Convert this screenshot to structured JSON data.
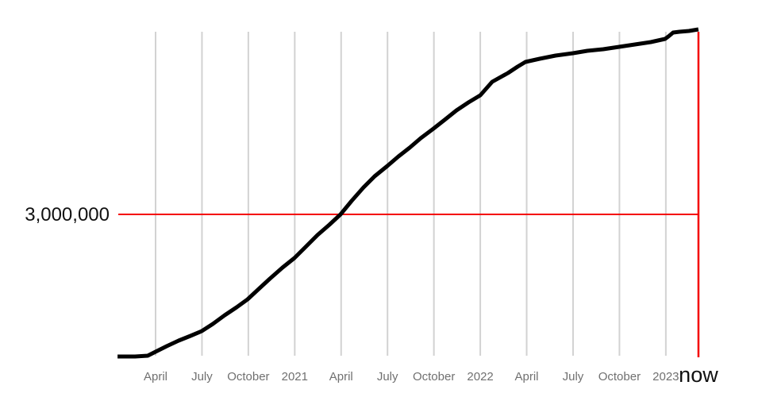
{
  "page": {
    "background": "#ffffff"
  },
  "chart_data": {
    "type": "line",
    "title": "",
    "x_unit": "months since January 2020",
    "x_range": [
      0.54,
      38.11
    ],
    "y_range": [
      0,
      6833000
    ],
    "grid": {
      "show": true,
      "color": "#d2d2d2"
    },
    "x_ticks": [
      {
        "label": "April",
        "month": 3
      },
      {
        "label": "July",
        "month": 6
      },
      {
        "label": "October",
        "month": 9
      },
      {
        "label": "2021",
        "month": 12
      },
      {
        "label": "April",
        "month": 15
      },
      {
        "label": "July",
        "month": 18
      },
      {
        "label": "October",
        "month": 21
      },
      {
        "label": "2022",
        "month": 24
      },
      {
        "label": "April",
        "month": 27
      },
      {
        "label": "July",
        "month": 30
      },
      {
        "label": "October",
        "month": 33
      },
      {
        "label": "2023",
        "month": 36
      }
    ],
    "x_tick_color": "#707070",
    "reference_line": {
      "label": "3,000,000",
      "value": 3000000,
      "color": "#f40000"
    },
    "now_marker": {
      "label": "now",
      "month": 38.11,
      "color": "#f40000",
      "label_color": "#111111"
    },
    "series": [
      {
        "name": "cumulative-count",
        "color": "#000000",
        "stroke_width": 5,
        "points": [
          [
            0.54,
            17000
          ],
          [
            1.67,
            17000
          ],
          [
            2.49,
            33000
          ],
          [
            3.0,
            117000
          ],
          [
            3.72,
            233000
          ],
          [
            4.49,
            350000
          ],
          [
            5.26,
            450000
          ],
          [
            5.98,
            550000
          ],
          [
            6.7,
            700000
          ],
          [
            7.47,
            883000
          ],
          [
            8.24,
            1050000
          ],
          [
            8.95,
            1217000
          ],
          [
            9.67,
            1433000
          ],
          [
            10.39,
            1650000
          ],
          [
            11.21,
            1883000
          ],
          [
            11.98,
            2083000
          ],
          [
            12.7,
            2317000
          ],
          [
            13.47,
            2567000
          ],
          [
            14.24,
            2783000
          ],
          [
            14.96,
            3000000
          ],
          [
            15.68,
            3283000
          ],
          [
            16.45,
            3567000
          ],
          [
            17.17,
            3800000
          ],
          [
            17.99,
            4017000
          ],
          [
            18.71,
            4217000
          ],
          [
            19.43,
            4400000
          ],
          [
            20.15,
            4600000
          ],
          [
            20.97,
            4800000
          ],
          [
            21.69,
            4983000
          ],
          [
            22.46,
            5183000
          ],
          [
            23.23,
            5350000
          ],
          [
            24.0,
            5500000
          ],
          [
            24.77,
            5783000
          ],
          [
            25.79,
            5967000
          ],
          [
            26.41,
            6100000
          ],
          [
            26.92,
            6200000
          ],
          [
            27.84,
            6267000
          ],
          [
            28.87,
            6333000
          ],
          [
            30.0,
            6383000
          ],
          [
            30.92,
            6433000
          ],
          [
            31.95,
            6467000
          ],
          [
            32.98,
            6517000
          ],
          [
            34.0,
            6567000
          ],
          [
            35.03,
            6617000
          ],
          [
            35.95,
            6683000
          ],
          [
            36.16,
            6733000
          ],
          [
            36.47,
            6817000
          ],
          [
            36.88,
            6833000
          ],
          [
            37.49,
            6850000
          ],
          [
            38.11,
            6883000
          ]
        ]
      }
    ]
  }
}
